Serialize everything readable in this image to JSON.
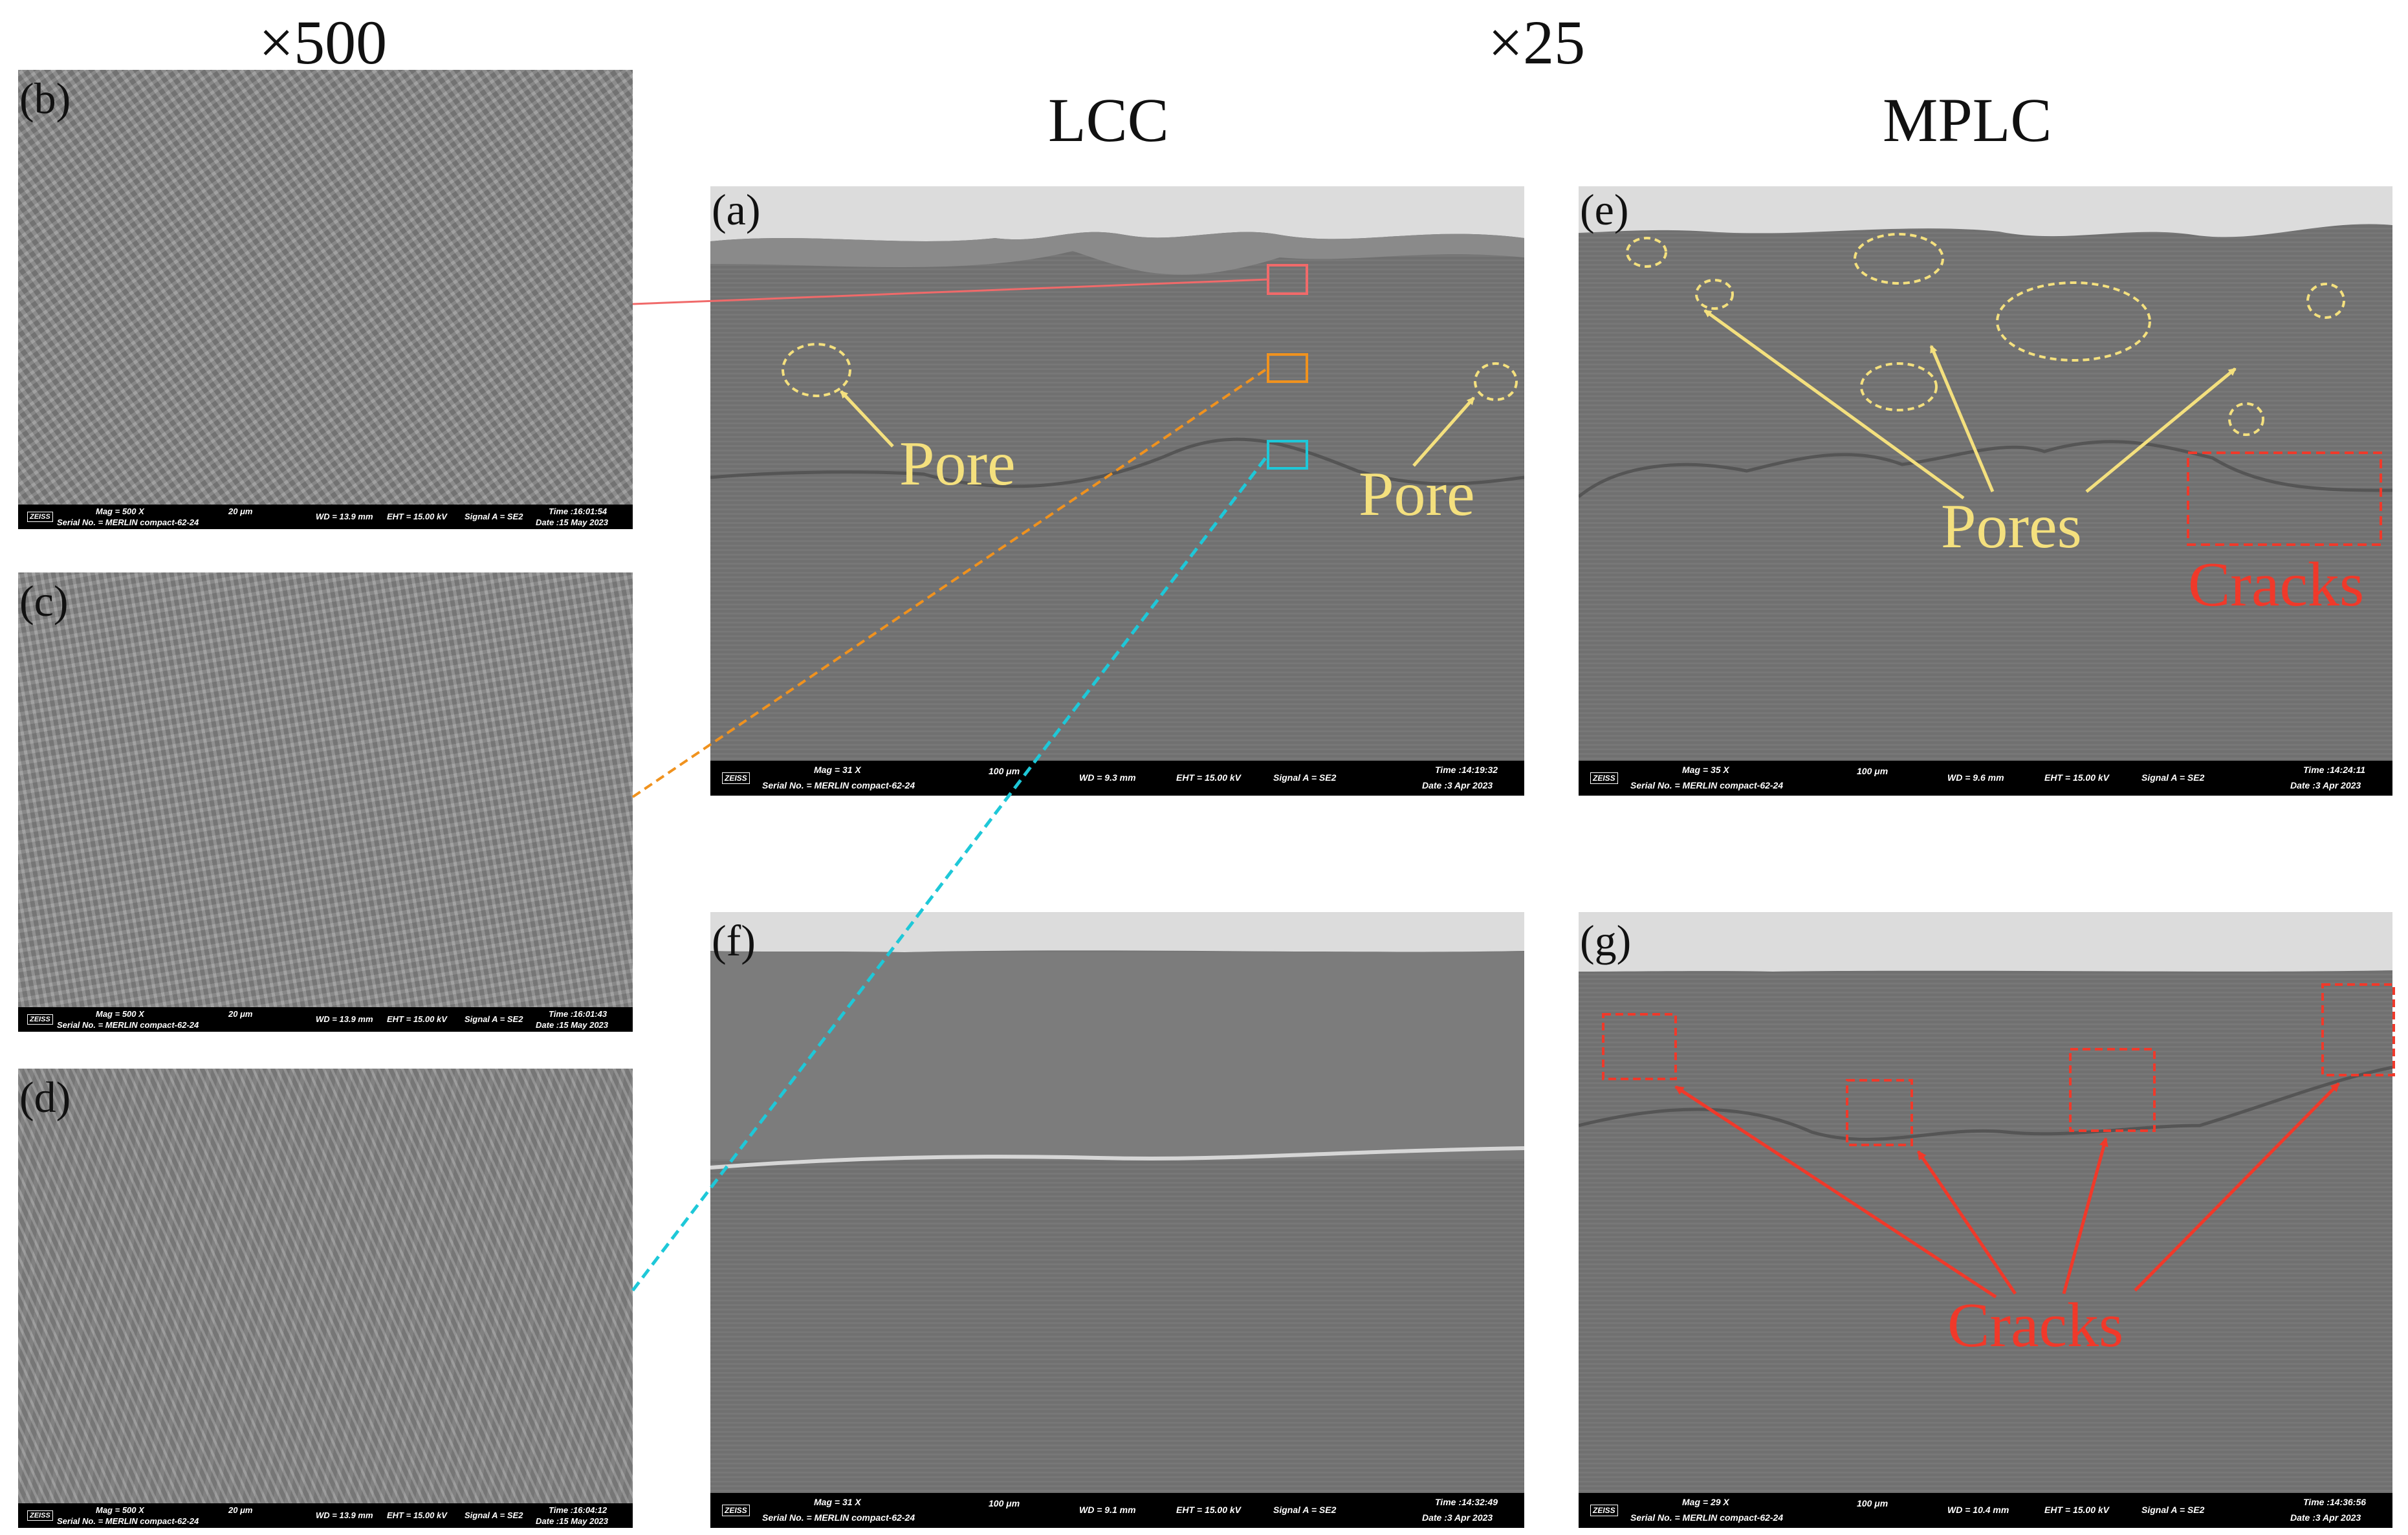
{
  "headers": {
    "mag_left": "×500",
    "mag_right": "×25",
    "col_lcc": "LCC",
    "col_mplc": "MPLC"
  },
  "panels": {
    "b": {
      "label": "(b)",
      "mag": "Mag =  500 X",
      "serial": "Serial No. = MERLIN compact-62-24",
      "scale": "20 μm",
      "wd": "WD = 13.9 mm",
      "eht": "EHT = 15.00 kV",
      "signal": "Signal A = SE2",
      "time": "Time :16:01:54",
      "date": "Date :15 May 2023"
    },
    "c": {
      "label": "(c)",
      "mag": "Mag =  500 X",
      "serial": "Serial No. = MERLIN compact-62-24",
      "scale": "20 μm",
      "wd": "WD = 13.9 mm",
      "eht": "EHT = 15.00 kV",
      "signal": "Signal A = SE2",
      "time": "Time :16:01:43",
      "date": "Date :15 May 2023"
    },
    "d": {
      "label": "(d)",
      "mag": "Mag =  500 X",
      "serial": "Serial No. = MERLIN compact-62-24",
      "scale": "20 μm",
      "wd": "WD = 13.9 mm",
      "eht": "EHT = 15.00 kV",
      "signal": "Signal A = SE2",
      "time": "Time :16:04:12",
      "date": "Date :15 May 2023"
    },
    "a": {
      "label": "(a)",
      "mag": "Mag =  31 X",
      "serial": "Serial No. = MERLIN compact-62-24",
      "scale": "100 μm",
      "wd": "WD = 9.3 mm",
      "eht": "EHT = 15.00 kV",
      "signal": "Signal A = SE2",
      "time": "Time :14:19:32",
      "date": "Date :3 Apr 2023"
    },
    "e": {
      "label": "(e)",
      "mag": "Mag =  35 X",
      "serial": "Serial No. = MERLIN compact-62-24",
      "scale": "100 μm",
      "wd": "WD = 9.6 mm",
      "eht": "EHT = 15.00 kV",
      "signal": "Signal A = SE2",
      "time": "Time :14:24:11",
      "date": "Date :3 Apr 2023"
    },
    "f": {
      "label": "(f)",
      "mag": "Mag =  31 X",
      "serial": "Serial No. = MERLIN compact-62-24",
      "scale": "100 μm",
      "wd": "WD = 9.1 mm",
      "eht": "EHT = 15.00 kV",
      "signal": "Signal A = SE2",
      "time": "Time :14:32:49",
      "date": "Date :3 Apr 2023"
    },
    "g": {
      "label": "(g)",
      "mag": "Mag =  29 X",
      "serial": "Serial No. = MERLIN compact-62-24",
      "scale": "100 μm",
      "wd": "WD = 10.4 mm",
      "eht": "EHT = 15.00 kV",
      "signal": "Signal A = SE2",
      "time": "Time :14:36:56",
      "date": "Date :3 Apr 2023"
    }
  },
  "logo_text": "ZEISS",
  "annotations": {
    "pore_left": "Pore",
    "pore_right": "Pore",
    "pores": "Pores",
    "cracks_e": "Cracks",
    "cracks_g": "Cracks"
  },
  "colors": {
    "pore_annotation": "#f4e07e",
    "crack_annotation": "#f0392a",
    "box_top": "#f06a6a",
    "box_mid": "#f0921e",
    "box_bottom": "#1ec8d8"
  }
}
